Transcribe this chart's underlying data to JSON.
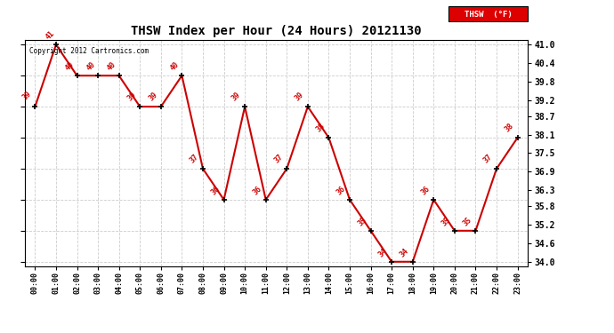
{
  "title": "THSW Index per Hour (24 Hours) 20121130",
  "hours": [
    0,
    1,
    2,
    3,
    4,
    5,
    6,
    7,
    8,
    9,
    10,
    11,
    12,
    13,
    14,
    15,
    16,
    17,
    18,
    19,
    20,
    21,
    22,
    23
  ],
  "hour_labels": [
    "00:00",
    "01:00",
    "02:00",
    "03:00",
    "04:00",
    "05:00",
    "06:00",
    "07:00",
    "08:00",
    "09:00",
    "10:00",
    "11:00",
    "12:00",
    "13:00",
    "14:00",
    "15:00",
    "16:00",
    "17:00",
    "18:00",
    "19:00",
    "20:00",
    "21:00",
    "22:00",
    "23:00"
  ],
  "values": [
    39,
    41,
    40,
    40,
    40,
    39,
    39,
    40,
    37,
    36,
    39,
    36,
    37,
    39,
    38,
    36,
    35,
    34,
    34,
    36,
    35,
    35,
    37,
    38
  ],
  "y_ticks": [
    34.0,
    34.6,
    35.2,
    35.8,
    36.3,
    36.9,
    37.5,
    38.1,
    38.7,
    39.2,
    39.8,
    40.4,
    41.0
  ],
  "ylim_min": 33.85,
  "ylim_max": 41.15,
  "line_color": "#cc0000",
  "marker_color": "#000000",
  "label_color": "#cc0000",
  "bg_color": "#ffffff",
  "grid_color": "#cccccc",
  "copyright_text": "Copyright 2012 Cartronics.com",
  "legend_label": "THSW  (°F)",
  "legend_bg": "#dd0000",
  "legend_text_color": "#ffffff"
}
